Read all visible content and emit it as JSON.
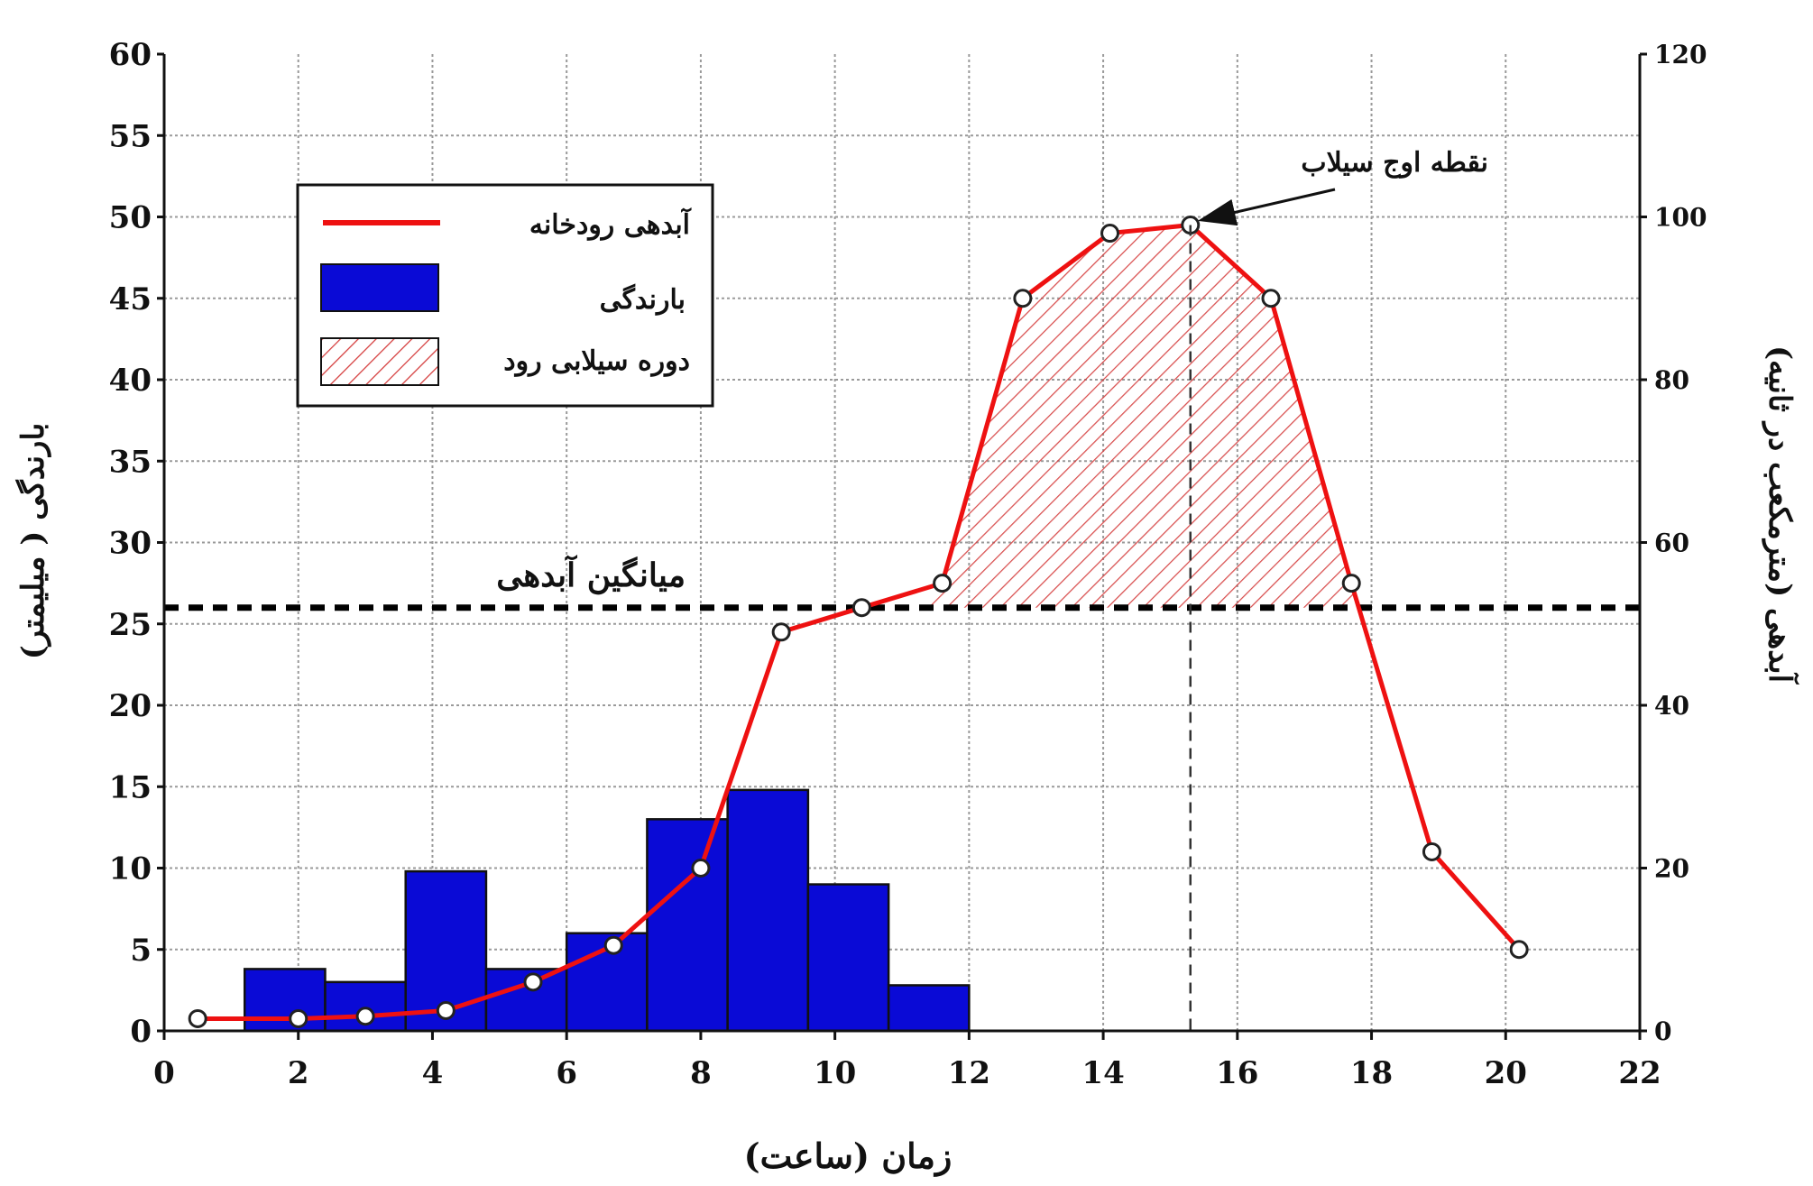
{
  "chart_data": {
    "type": "bar+line",
    "title": "",
    "xlabel": "زمان (ساعت)",
    "ylabel_left": "بارندگی ( میلیمتر)",
    "ylabel_right": "آبدهی (مترمکعب در ثانیه)",
    "xlim": [
      0,
      22
    ],
    "ylim_left": [
      0,
      60
    ],
    "ylim_right": [
      0,
      120
    ],
    "x_ticks": [
      0,
      2,
      4,
      6,
      8,
      10,
      12,
      14,
      16,
      18,
      20,
      22
    ],
    "y_ticks_left": [
      0,
      5,
      10,
      15,
      20,
      25,
      30,
      35,
      40,
      45,
      50,
      55,
      60
    ],
    "y_ticks_right": [
      0,
      20,
      40,
      60,
      80,
      100,
      120
    ],
    "grid": true,
    "legend_position": "top-left",
    "legend": [
      {
        "label": "آبدهی رودخانه",
        "kind": "line",
        "color": "#ee1111"
      },
      {
        "label": "بارندگی",
        "kind": "bar",
        "color": "#0a0ad6"
      },
      {
        "label": "دوره سیلابی رود",
        "kind": "hatch",
        "color": "#d43a3a"
      }
    ],
    "series": [
      {
        "name": "بارندگی",
        "kind": "bar",
        "axis": "left",
        "color": "#0a0ad6",
        "bars": [
          {
            "x0": 1.2,
            "x1": 2.4,
            "value": 3.8
          },
          {
            "x0": 2.4,
            "x1": 3.6,
            "value": 3.0
          },
          {
            "x0": 3.6,
            "x1": 4.8,
            "value": 9.8
          },
          {
            "x0": 4.8,
            "x1": 6.0,
            "value": 3.8
          },
          {
            "x0": 6.0,
            "x1": 7.2,
            "value": 6.0
          },
          {
            "x0": 7.2,
            "x1": 8.4,
            "value": 13.0
          },
          {
            "x0": 8.4,
            "x1": 9.6,
            "value": 14.8
          },
          {
            "x0": 9.6,
            "x1": 10.8,
            "value": 9.0
          },
          {
            "x0": 10.8,
            "x1": 12.0,
            "value": 2.8
          }
        ]
      },
      {
        "name": "آبدهی رودخانه",
        "kind": "line",
        "axis": "right",
        "color": "#ee1111",
        "points": [
          {
            "x": 0.5,
            "y": 1.5
          },
          {
            "x": 2.0,
            "y": 1.5
          },
          {
            "x": 3.0,
            "y": 1.8
          },
          {
            "x": 4.2,
            "y": 2.5
          },
          {
            "x": 5.5,
            "y": 6.0
          },
          {
            "x": 6.7,
            "y": 10.5
          },
          {
            "x": 8.0,
            "y": 20.0
          },
          {
            "x": 9.2,
            "y": 49.0
          },
          {
            "x": 10.4,
            "y": 52.0
          },
          {
            "x": 11.6,
            "y": 55.0
          },
          {
            "x": 12.8,
            "y": 90.0
          },
          {
            "x": 14.1,
            "y": 98.0
          },
          {
            "x": 15.3,
            "y": 99.0
          },
          {
            "x": 16.5,
            "y": 90.0
          },
          {
            "x": 17.7,
            "y": 55.0
          },
          {
            "x": 18.9,
            "y": 22.0
          },
          {
            "x": 20.2,
            "y": 10.0
          }
        ]
      }
    ],
    "mean_discharge": {
      "label": "میانگین آبدهی",
      "value": 52,
      "axis": "right"
    },
    "flood_period": {
      "x_start": 11.2,
      "x_end": 17.85
    },
    "annotations": [
      {
        "text": "نقطه اوج سیلاب",
        "x": 15.3,
        "y": 99.0,
        "axis": "right"
      }
    ]
  }
}
